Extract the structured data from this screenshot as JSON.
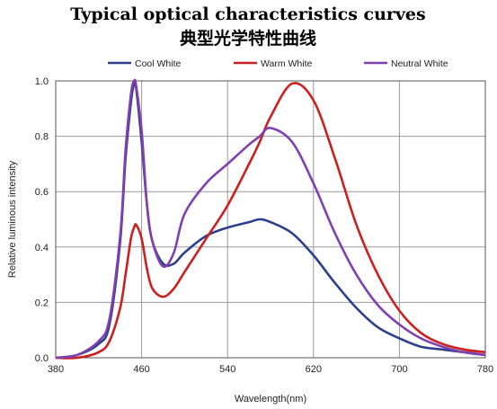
{
  "chart_data": {
    "type": "line",
    "title": "Typical optical characteristics curves",
    "subtitle": "典型光学特性曲线",
    "xlabel": "Wavelength(nm)",
    "ylabel": "Relative luminous intensity",
    "xlim": [
      380,
      780
    ],
    "ylim": [
      0,
      1.0
    ],
    "x_ticks": [
      "380",
      "460",
      "540",
      "620",
      "700",
      "780"
    ],
    "y_ticks": [
      "0.0",
      "0.2",
      "0.4",
      "0.6",
      "0.8",
      "1.0"
    ],
    "grid": true,
    "legend_position": "top",
    "x": [
      380,
      400,
      420,
      430,
      440,
      445,
      450,
      453,
      455,
      460,
      465,
      470,
      480,
      490,
      500,
      520,
      540,
      560,
      570,
      580,
      600,
      620,
      640,
      660,
      680,
      700,
      720,
      740,
      760,
      780
    ],
    "series": [
      {
        "name": "Cool White",
        "color": "#2b3f8c",
        "values": [
          0.0,
          0.01,
          0.05,
          0.12,
          0.42,
          0.72,
          0.92,
          0.99,
          0.97,
          0.78,
          0.55,
          0.42,
          0.34,
          0.34,
          0.38,
          0.44,
          0.47,
          0.49,
          0.5,
          0.49,
          0.45,
          0.37,
          0.27,
          0.18,
          0.11,
          0.07,
          0.04,
          0.03,
          0.02,
          0.01
        ]
      },
      {
        "name": "Warm White",
        "color": "#cc1f1f",
        "values": [
          0.0,
          0.0,
          0.02,
          0.06,
          0.18,
          0.3,
          0.43,
          0.47,
          0.48,
          0.43,
          0.32,
          0.25,
          0.22,
          0.25,
          0.31,
          0.43,
          0.55,
          0.7,
          0.78,
          0.87,
          0.99,
          0.93,
          0.72,
          0.48,
          0.3,
          0.17,
          0.09,
          0.05,
          0.03,
          0.02
        ]
      },
      {
        "name": "Neutral White",
        "color": "#8040b0",
        "values": [
          0.0,
          0.01,
          0.06,
          0.14,
          0.44,
          0.75,
          0.95,
          1.0,
          0.98,
          0.82,
          0.55,
          0.42,
          0.33,
          0.38,
          0.52,
          0.63,
          0.7,
          0.77,
          0.8,
          0.83,
          0.78,
          0.63,
          0.45,
          0.3,
          0.19,
          0.12,
          0.07,
          0.04,
          0.02,
          0.01
        ]
      }
    ]
  }
}
